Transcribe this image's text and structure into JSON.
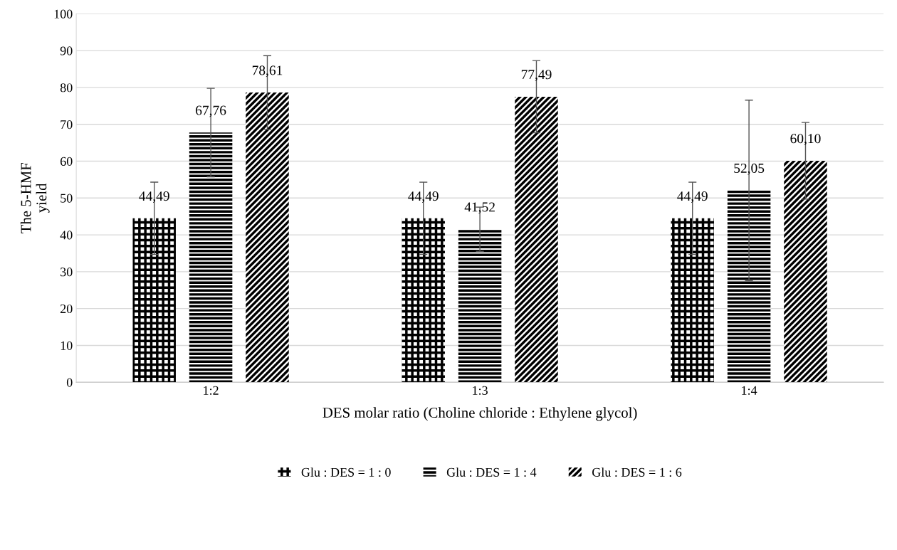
{
  "chart_data": {
    "type": "bar",
    "xlabel": "DES molar ratio (Choline chloride : Ethylene glycol)",
    "ylabel": "The 5-HMF\nyield",
    "categories": [
      "1:2",
      "1:3",
      "1:4"
    ],
    "series": [
      {
        "name": "Glu : DES = 1 : 0",
        "color": "#000000",
        "values": [
          44.49,
          44.49,
          44.49
        ],
        "errors": [
          9.8,
          9.8,
          9.8
        ],
        "value_labels": [
          "44,49",
          "44,49",
          "44,49"
        ]
      },
      {
        "name": "Glu : DES = 1 : 4",
        "color": "#000000",
        "values": [
          67.76,
          41.52,
          52.05
        ],
        "errors": [
          12,
          6,
          24.5
        ],
        "value_labels": [
          "67,76",
          "41,52",
          "52,05"
        ]
      },
      {
        "name": "Glu : DES = 1 : 6",
        "color": "#000000",
        "values": [
          78.61,
          77.49,
          60.1
        ],
        "errors": [
          10,
          9.8,
          10.4
        ],
        "value_labels": [
          "78,61",
          "77,49",
          "60,10"
        ]
      }
    ],
    "ylim": [
      0,
      100
    ],
    "yticks": [
      0,
      10,
      20,
      30,
      40,
      50,
      60,
      70,
      80,
      90,
      100
    ],
    "grid": "y",
    "legend": "bottom"
  }
}
